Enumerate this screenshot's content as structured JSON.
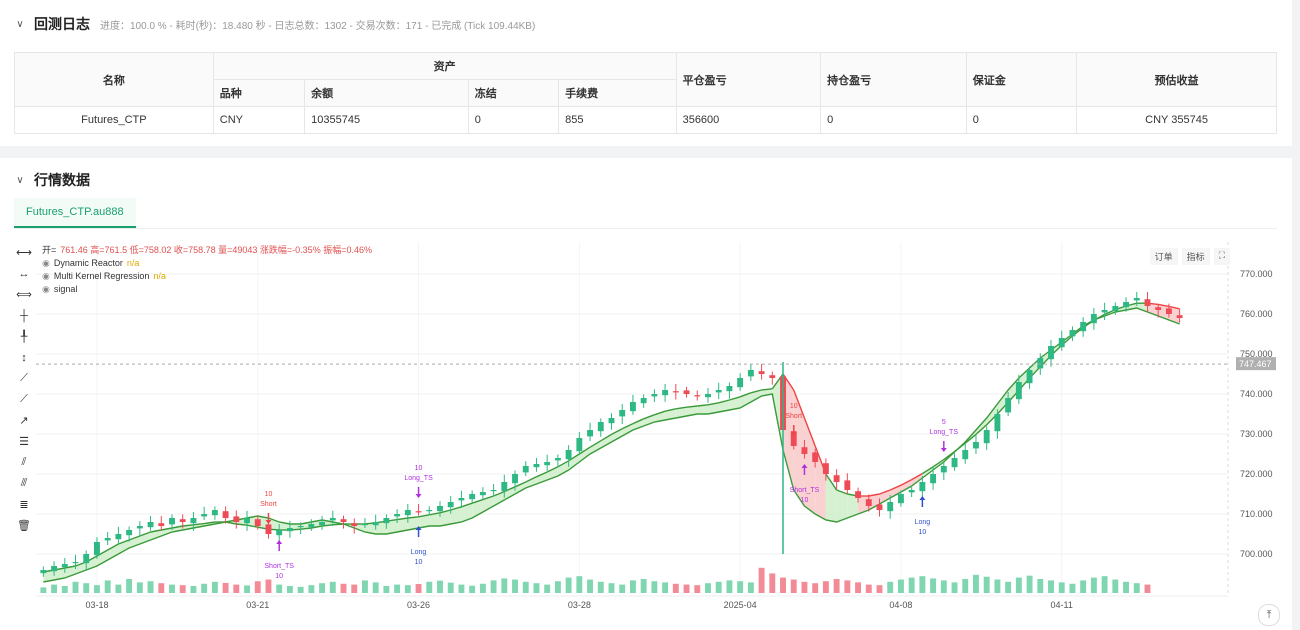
{
  "log": {
    "title": "回测日志",
    "subtitle": "进度：100.0 % - 耗时(秒)：18.480 秒 - 日志总数：1302 - 交易次数：171 - 已完成 (Tick 109.44KB)",
    "headers": {
      "name": "名称",
      "assets": "资产",
      "variety": "品种",
      "balance": "余额",
      "frozen": "冻结",
      "fee": "手续费",
      "closed_pnl": "平仓盈亏",
      "position_pnl": "持仓盈亏",
      "margin": "保证金",
      "est_profit": "预估收益"
    },
    "row": {
      "name": "Futures_CTP",
      "variety": "CNY",
      "balance": "10355745",
      "frozen": "0",
      "fee": "855",
      "closed_pnl": "356600",
      "position_pnl": "0",
      "margin": "0",
      "est_profit": "CNY 355745"
    }
  },
  "market": {
    "title": "行情数据",
    "tab": "Futures_CTP.au888",
    "buttons": {
      "order": "订单",
      "indicator": "指标"
    },
    "legend": {
      "ohlc_prefix": "开=",
      "ohlc": "761.46 高=761.5 低=758.02 收=758.78 量=49043 涨跌幅=-0.35% 振幅=0.46%",
      "series1": "Dynamic Reactor",
      "series1_val": "n/a",
      "series2": "Multi Kernel Regression",
      "series2_val": "n/a",
      "series3": "signal"
    },
    "tools": [
      "line-tool-icon",
      "ray-tool-icon",
      "extended-line-icon",
      "vertical-segment-icon",
      "vertical-ray-icon",
      "vertical-line-icon",
      "trend-up-icon",
      "trend-angle-icon",
      "trend-arrow-icon",
      "price-range-icon",
      "parallel-channel-icon",
      "pitchfork-icon",
      "fib-tool-icon",
      "delete-icon"
    ]
  },
  "chart_data": {
    "type": "candlestick",
    "ylim": [
      690,
      778
    ],
    "y_ticks": [
      "770.000",
      "760.000",
      "750.000",
      "740.000",
      "730.000",
      "720.000",
      "710.000",
      "700.000"
    ],
    "y_tick_values": [
      770,
      760,
      750,
      740,
      730,
      720,
      710,
      700
    ],
    "x_ticks": [
      "03-18",
      "03-21",
      "03-26",
      "03-28",
      "2025-04",
      "04-08",
      "04-11"
    ],
    "x_tick_index": [
      5,
      20,
      35,
      50,
      65,
      80,
      95
    ],
    "crosshair_label": "747.467",
    "crosshair_value": 747.467,
    "close": [
      696,
      697,
      697.5,
      698,
      700,
      703,
      704,
      705,
      706,
      707,
      708,
      707,
      709,
      708,
      709,
      710,
      711,
      709,
      708,
      709,
      707,
      705,
      706,
      706.5,
      707,
      707.5,
      708,
      709,
      708,
      707,
      707.5,
      708,
      709,
      710,
      711,
      710.5,
      711,
      712,
      713,
      714,
      715,
      715.5,
      716,
      718,
      720,
      722,
      722.5,
      723,
      724,
      726,
      729,
      731,
      733,
      734,
      736,
      738,
      739,
      740,
      741,
      740.5,
      740,
      739.5,
      740,
      741,
      742,
      744,
      746,
      745,
      744,
      731,
      727,
      725,
      723,
      720,
      718,
      716,
      714,
      712,
      711,
      713,
      715,
      716,
      718,
      720,
      722,
      724,
      726,
      728,
      731,
      735,
      739,
      743,
      746,
      749,
      752,
      754,
      756,
      758,
      760,
      761,
      762,
      763,
      764,
      762,
      761,
      760,
      759
    ],
    "reactor": [
      695.5,
      696,
      696.5,
      697,
      698,
      699.5,
      701,
      702.5,
      703.5,
      704.5,
      705.5,
      706,
      706.5,
      707,
      707.3,
      707.6,
      708,
      708,
      707.5,
      707.2,
      706.7,
      706.2,
      706,
      706,
      706.2,
      706.5,
      707,
      707.3,
      707.5,
      707.5,
      707.5,
      707.8,
      708.2,
      708.6,
      709,
      709.3,
      709.8,
      710.3,
      711,
      711.8,
      712.7,
      713.6,
      714.5,
      715.6,
      716.8,
      718,
      719.3,
      720.5,
      721.8,
      723.3,
      725,
      726.7,
      728.3,
      729.9,
      731.3,
      732.6,
      733.8,
      734.8,
      735.7,
      736.3,
      736.7,
      737,
      737.3,
      737.8,
      738.5,
      739.3,
      740.3,
      741,
      741.3,
      745,
      741,
      734,
      727,
      720,
      716,
      715,
      714.5,
      714.5,
      715,
      716,
      717.2,
      718.6,
      720.1,
      721.8,
      723.6,
      725.6,
      727.7,
      729.9,
      732.3,
      735,
      737.9,
      740.9,
      744,
      746.8,
      749.6,
      752.2,
      754.5,
      756.6,
      758.4,
      759.9,
      761.1,
      762,
      762.7,
      762.7,
      762.4,
      761.9,
      761.3
    ],
    "regression": [
      693,
      693.5,
      694,
      695,
      696,
      697,
      698.5,
      700,
      701.5,
      702.5,
      703.5,
      704.5,
      705.5,
      706,
      706.5,
      707,
      707.5,
      708,
      708.5,
      709,
      709.5,
      709,
      708,
      707.5,
      707.5,
      708,
      708.5,
      708,
      707.5,
      706.5,
      705.5,
      705,
      705,
      705.5,
      706,
      706.5,
      707,
      707,
      707.5,
      708,
      709,
      710.5,
      712,
      713.5,
      715,
      716.5,
      717.5,
      718.5,
      719.5,
      721,
      723,
      725,
      726.5,
      728,
      729.5,
      731,
      732,
      733,
      733.5,
      734,
      734.5,
      735,
      735,
      735.5,
      736,
      736.5,
      738,
      739.5,
      740,
      726,
      716,
      712,
      710,
      708.5,
      708,
      709,
      710,
      711,
      712.5,
      714,
      715.5,
      717,
      719,
      721,
      723,
      725.5,
      728,
      731,
      734,
      737.5,
      741,
      744,
      746.5,
      749,
      751,
      753,
      755,
      757,
      758.5,
      759.5,
      760.5,
      761,
      761.5,
      760.5,
      759.5,
      758.5,
      757.5
    ],
    "vol": [
      20,
      30,
      25,
      40,
      35,
      28,
      45,
      30,
      50,
      38,
      42,
      35,
      30,
      28,
      25,
      33,
      40,
      36,
      30,
      27,
      42,
      48,
      30,
      25,
      22,
      28,
      35,
      40,
      33,
      30,
      45,
      38,
      25,
      30,
      28,
      32,
      40,
      44,
      37,
      30,
      26,
      33,
      45,
      52,
      48,
      40,
      35,
      30,
      42,
      55,
      60,
      48,
      40,
      35,
      30,
      45,
      50,
      42,
      38,
      33,
      30,
      28,
      35,
      40,
      45,
      42,
      38,
      90,
      70,
      55,
      48,
      40,
      35,
      42,
      50,
      45,
      38,
      30,
      28,
      40,
      48,
      55,
      60,
      52,
      45,
      38,
      50,
      65,
      58,
      48,
      40,
      55,
      62,
      50,
      45,
      38,
      33,
      45,
      55,
      60,
      48,
      40,
      35,
      30
    ],
    "volume_scale_max": 100,
    "signals": [
      {
        "type": "short",
        "label": "Short",
        "qty": "10",
        "index": 21
      },
      {
        "type": "short_ts",
        "label": "Short_TS",
        "qty": "10",
        "index": 22
      },
      {
        "type": "long_ts",
        "label": "Long_TS",
        "qty": "10",
        "index": 35
      },
      {
        "type": "long",
        "label": "Long",
        "qty": "10",
        "index": 35
      },
      {
        "type": "short",
        "label": "Short",
        "qty": "10",
        "index": 70
      },
      {
        "type": "short_ts",
        "label": "Short_TS",
        "qty": "10",
        "index": 71
      },
      {
        "type": "long_ts",
        "label": "Long_TS",
        "qty": "5",
        "index": 84
      },
      {
        "type": "long",
        "label": "Long",
        "qty": "10",
        "index": 82
      }
    ],
    "colors": {
      "up": "#2eb884",
      "down": "#ee4b57",
      "reactor_bull": "#3a9a3a",
      "reactor_bear": "#ee4444",
      "fill_bull": "#cfeec9",
      "fill_bear": "#f9c9c9",
      "signal": "#b030e0",
      "long": "#3050d0"
    }
  }
}
